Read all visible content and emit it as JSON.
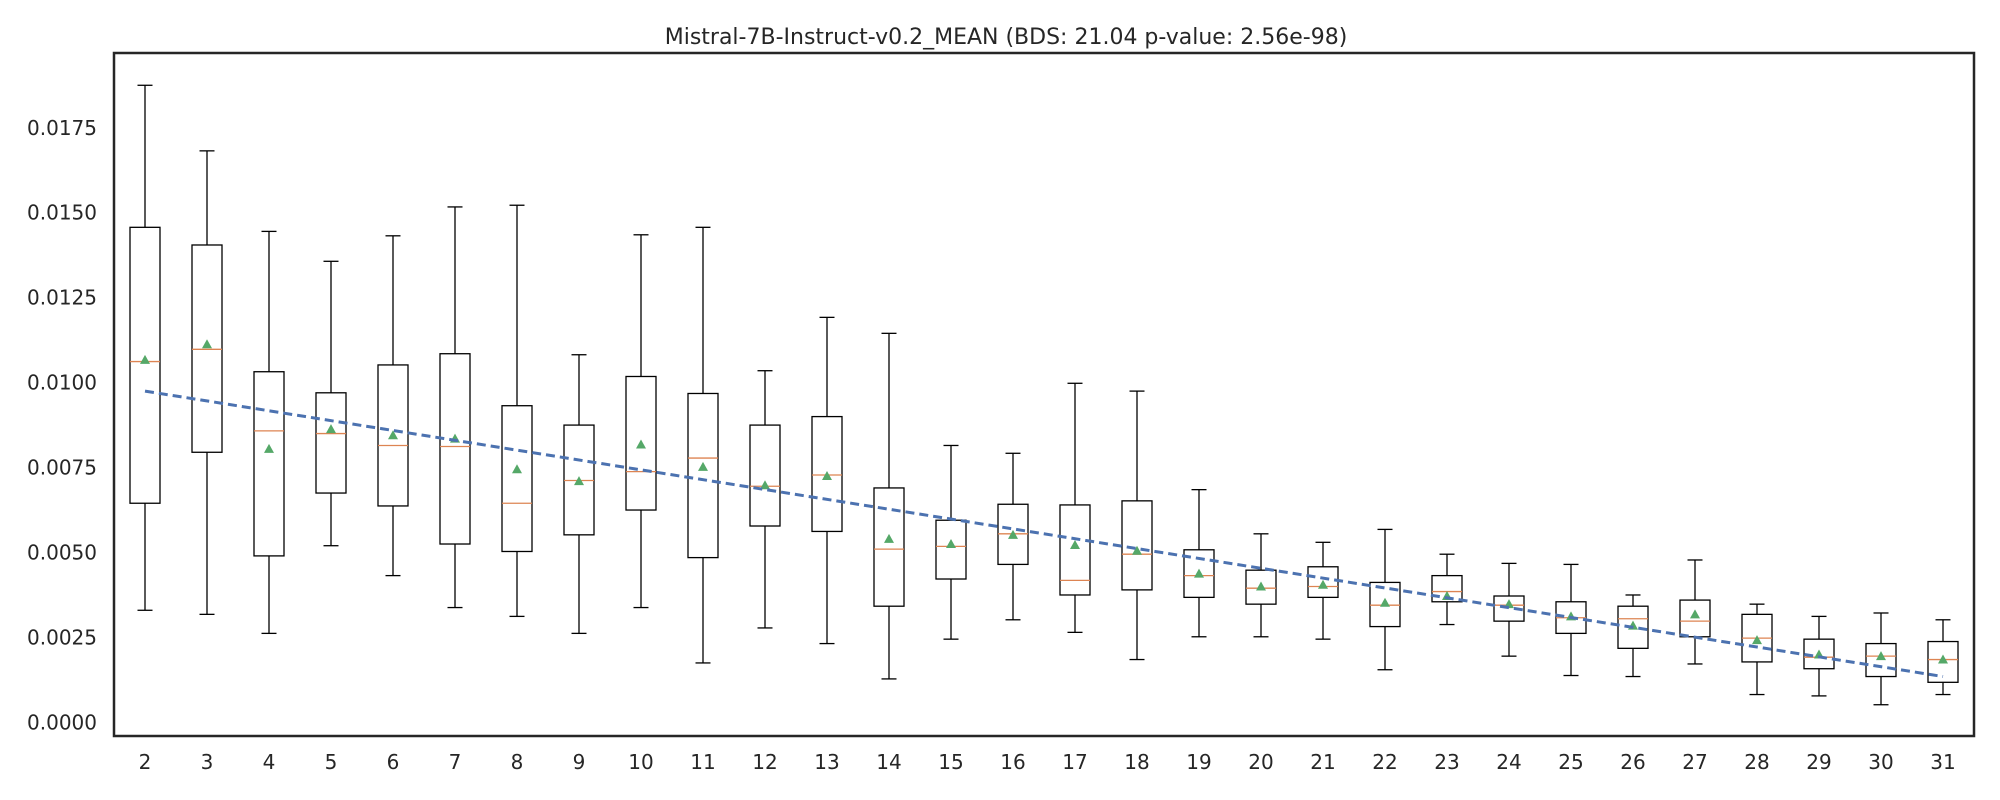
{
  "chart_data": {
    "type": "box",
    "title": "Mistral-7B-Instruct-v0.2_MEAN (BDS: 21.04 p-value: 2.56e-98)",
    "xlabel": "",
    "ylabel": "",
    "categories": [
      "2",
      "3",
      "4",
      "5",
      "6",
      "7",
      "8",
      "9",
      "10",
      "11",
      "12",
      "13",
      "14",
      "15",
      "16",
      "17",
      "18",
      "19",
      "20",
      "21",
      "22",
      "23",
      "24",
      "25",
      "26",
      "27",
      "28",
      "29",
      "30",
      "31"
    ],
    "ylim": [
      -0.0004,
      0.0197
    ],
    "yticks": [
      "0.0000",
      "0.0025",
      "0.0050",
      "0.0075",
      "0.0100",
      "0.0125",
      "0.0150",
      "0.0175"
    ],
    "grid": false,
    "boxes": [
      {
        "layer": "2",
        "whisker_low": 0.0033,
        "q1": 0.00645,
        "median": 0.01062,
        "q3": 0.01457,
        "whisker_high": 0.01875,
        "mean": 0.01067
      },
      {
        "layer": "3",
        "whisker_low": 0.00318,
        "q1": 0.00795,
        "median": 0.01098,
        "q3": 0.01405,
        "whisker_high": 0.01682,
        "mean": 0.01113
      },
      {
        "layer": "4",
        "whisker_low": 0.00262,
        "q1": 0.0049,
        "median": 0.00858,
        "q3": 0.01032,
        "whisker_high": 0.01445,
        "mean": 0.00805
      },
      {
        "layer": "5",
        "whisker_low": 0.0052,
        "q1": 0.00675,
        "median": 0.0085,
        "q3": 0.0097,
        "whisker_high": 0.01357,
        "mean": 0.00863
      },
      {
        "layer": "6",
        "whisker_low": 0.00432,
        "q1": 0.00637,
        "median": 0.00815,
        "q3": 0.01052,
        "whisker_high": 0.01432,
        "mean": 0.00845
      },
      {
        "layer": "7",
        "whisker_low": 0.00338,
        "q1": 0.00525,
        "median": 0.00812,
        "q3": 0.01085,
        "whisker_high": 0.01517,
        "mean": 0.00835
      },
      {
        "layer": "8",
        "whisker_low": 0.00312,
        "q1": 0.00503,
        "median": 0.00645,
        "q3": 0.00932,
        "whisker_high": 0.01522,
        "mean": 0.00745
      },
      {
        "layer": "9",
        "whisker_low": 0.00262,
        "q1": 0.00552,
        "median": 0.00712,
        "q3": 0.00875,
        "whisker_high": 0.01082,
        "mean": 0.0071
      },
      {
        "layer": "10",
        "whisker_low": 0.00338,
        "q1": 0.00625,
        "median": 0.00738,
        "q3": 0.01018,
        "whisker_high": 0.01435,
        "mean": 0.00818
      },
      {
        "layer": "11",
        "whisker_low": 0.00175,
        "q1": 0.00485,
        "median": 0.00778,
        "q3": 0.00968,
        "whisker_high": 0.01457,
        "mean": 0.00752
      },
      {
        "layer": "12",
        "whisker_low": 0.00278,
        "q1": 0.00578,
        "median": 0.00695,
        "q3": 0.00875,
        "whisker_high": 0.01035,
        "mean": 0.00698
      },
      {
        "layer": "13",
        "whisker_low": 0.00232,
        "q1": 0.00562,
        "median": 0.00728,
        "q3": 0.009,
        "whisker_high": 0.01192,
        "mean": 0.00725
      },
      {
        "layer": "14",
        "whisker_low": 0.00128,
        "q1": 0.00342,
        "median": 0.0051,
        "q3": 0.0069,
        "whisker_high": 0.01145,
        "mean": 0.0054
      },
      {
        "layer": "15",
        "whisker_low": 0.00245,
        "q1": 0.00422,
        "median": 0.00518,
        "q3": 0.00595,
        "whisker_high": 0.00815,
        "mean": 0.00525
      },
      {
        "layer": "16",
        "whisker_low": 0.00302,
        "q1": 0.00465,
        "median": 0.00555,
        "q3": 0.00642,
        "whisker_high": 0.00792,
        "mean": 0.00552
      },
      {
        "layer": "17",
        "whisker_low": 0.00265,
        "q1": 0.00375,
        "median": 0.00418,
        "q3": 0.0064,
        "whisker_high": 0.00998,
        "mean": 0.00522
      },
      {
        "layer": "18",
        "whisker_low": 0.00185,
        "q1": 0.0039,
        "median": 0.00495,
        "q3": 0.00652,
        "whisker_high": 0.00975,
        "mean": 0.00505
      },
      {
        "layer": "19",
        "whisker_low": 0.00252,
        "q1": 0.00368,
        "median": 0.00432,
        "q3": 0.00508,
        "whisker_high": 0.00685,
        "mean": 0.00438
      },
      {
        "layer": "20",
        "whisker_low": 0.00252,
        "q1": 0.00348,
        "median": 0.00395,
        "q3": 0.00448,
        "whisker_high": 0.00555,
        "mean": 0.004
      },
      {
        "layer": "21",
        "whisker_low": 0.00245,
        "q1": 0.00368,
        "median": 0.004,
        "q3": 0.00458,
        "whisker_high": 0.0053,
        "mean": 0.00405
      },
      {
        "layer": "22",
        "whisker_low": 0.00155,
        "q1": 0.00282,
        "median": 0.00345,
        "q3": 0.00412,
        "whisker_high": 0.00568,
        "mean": 0.00352
      },
      {
        "layer": "23",
        "whisker_low": 0.00288,
        "q1": 0.00355,
        "median": 0.00385,
        "q3": 0.00432,
        "whisker_high": 0.00495,
        "mean": 0.00372
      },
      {
        "layer": "24",
        "whisker_low": 0.00195,
        "q1": 0.00298,
        "median": 0.00345,
        "q3": 0.00372,
        "whisker_high": 0.00468,
        "mean": 0.00348
      },
      {
        "layer": "25",
        "whisker_low": 0.00138,
        "q1": 0.00262,
        "median": 0.00308,
        "q3": 0.00355,
        "whisker_high": 0.00465,
        "mean": 0.00312
      },
      {
        "layer": "26",
        "whisker_low": 0.00135,
        "q1": 0.00218,
        "median": 0.00305,
        "q3": 0.00342,
        "whisker_high": 0.00375,
        "mean": 0.00285
      },
      {
        "layer": "27",
        "whisker_low": 0.00172,
        "q1": 0.00252,
        "median": 0.00298,
        "q3": 0.0036,
        "whisker_high": 0.00478,
        "mean": 0.00318
      },
      {
        "layer": "28",
        "whisker_low": 0.00082,
        "q1": 0.00178,
        "median": 0.00248,
        "q3": 0.00318,
        "whisker_high": 0.00348,
        "mean": 0.00242
      },
      {
        "layer": "29",
        "whisker_low": 0.00078,
        "q1": 0.00158,
        "median": 0.00192,
        "q3": 0.00245,
        "whisker_high": 0.00312,
        "mean": 0.002
      },
      {
        "layer": "30",
        "whisker_low": 0.00052,
        "q1": 0.00135,
        "median": 0.00195,
        "q3": 0.00232,
        "whisker_high": 0.00322,
        "mean": 0.00195
      },
      {
        "layer": "31",
        "whisker_low": 0.00082,
        "q1": 0.00118,
        "median": 0.00185,
        "q3": 0.00238,
        "whisker_high": 0.00302,
        "mean": 0.00185
      }
    ],
    "trend_line": {
      "style": "dashed",
      "x_start": "2",
      "y_start": 0.00975,
      "x_end": "31",
      "y_end": 0.00135
    },
    "colors": {
      "box": "#000000",
      "median": "#dd8452",
      "mean_marker": "#55a868",
      "trend": "#4c72b0",
      "frame": "#262626",
      "text": "#262626"
    }
  }
}
